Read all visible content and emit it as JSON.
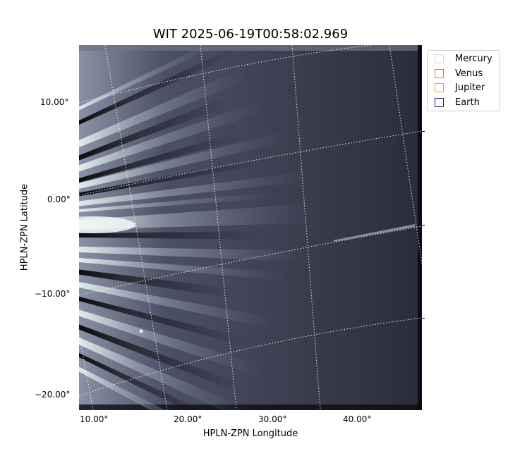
{
  "figure": {
    "title": "WIT 2025-06-19T00:58:02.969",
    "xlabel": "HPLN-ZPN Longitude",
    "ylabel": "HPLN-ZPN Latitude",
    "y_ticks": [
      "10.00°",
      "0.00°",
      "−10.00°",
      "−20.00°"
    ],
    "x_ticks": [
      "10.00°",
      "20.00°",
      "30.00°",
      "40.00°"
    ]
  },
  "legend": {
    "items": [
      {
        "label": "Mercury",
        "color": "#d9d9d9"
      },
      {
        "label": "Venus",
        "color": "#e07a3a"
      },
      {
        "label": "Jupiter",
        "color": "#e0b020"
      },
      {
        "label": "Earth",
        "color": "#1a1a8c"
      }
    ]
  },
  "image": {
    "background": "#2b2c3b",
    "streak_color": "#dfeee8",
    "grid_color": "#ffffff"
  }
}
